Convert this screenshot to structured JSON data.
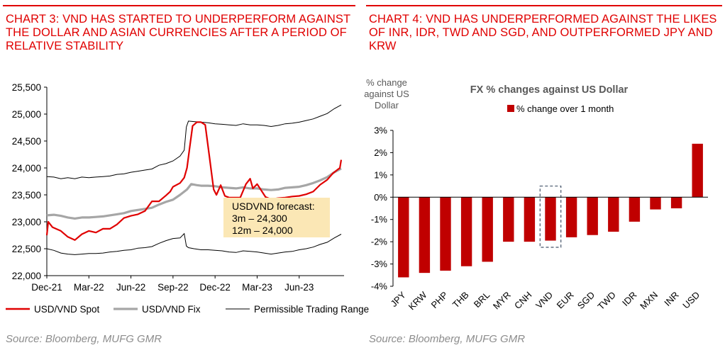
{
  "left_panel": {
    "title": "CHART 3: VND HAS STARTED TO UNDERPERFORM AGAINST THE DOLLAR AND ASIAN CURRENCIES AFTER A PERIOD OF RELATIVE STABILITY",
    "source": "Source: Bloomberg, MUFG GMR"
  },
  "right_panel": {
    "title": "CHART 4: VND HAS UNDERPERFORMED AGAINST THE LIKES OF INR, IDR, TWD AND SGD, AND OUTPERFORMED JPY AND KRW",
    "source": "Source: Bloomberg, MUFG GMR"
  },
  "colors": {
    "accent_red": "#e00000",
    "spot_line": "#e00000",
    "fix_line": "#a6a6a6",
    "range_line": "#000000",
    "bar": "#c00000",
    "annotation_bg": "#fbe7b5",
    "vnd_highlight_box": "#44546a"
  },
  "chart_data": [
    {
      "type": "line",
      "title": "",
      "xlabel": "",
      "ylabel": "",
      "ylim": [
        22000,
        25500
      ],
      "yticks": [
        "25,500",
        "25,000",
        "24,500",
        "24,000",
        "23,500",
        "23,000",
        "22,500",
        "22,000"
      ],
      "ytick_values": [
        25500,
        25000,
        24500,
        24000,
        23500,
        23000,
        22500,
        22000
      ],
      "xticks": [
        "Dec-21",
        "Mar-22",
        "Jun-22",
        "Sep-22",
        "Dec-22",
        "Mar-23",
        "Jun-23"
      ],
      "xtick_months": [
        0,
        3,
        6,
        9,
        12,
        15,
        18
      ],
      "xlim_months": [
        0,
        21.2
      ],
      "grid": false,
      "legend_position": "bottom",
      "annotation": [
        "USDVND forecast:",
        "3m – 24,300",
        "12m – 24,000"
      ],
      "series": [
        {
          "name": "USD/VND Spot",
          "color": "#e00000",
          "points": [
            [
              0,
              22750
            ],
            [
              0.1,
              23000
            ],
            [
              0.4,
              22900
            ],
            [
              1,
              22830
            ],
            [
              1.5,
              22720
            ],
            [
              2,
              22660
            ],
            [
              2.5,
              22770
            ],
            [
              3,
              22830
            ],
            [
              3.5,
              22800
            ],
            [
              4,
              22870
            ],
            [
              4.5,
              22870
            ],
            [
              5,
              22950
            ],
            [
              5.5,
              23070
            ],
            [
              6,
              23110
            ],
            [
              6.5,
              23140
            ],
            [
              7,
              23200
            ],
            [
              7.5,
              23380
            ],
            [
              8,
              23380
            ],
            [
              8.5,
              23490
            ],
            [
              8.8,
              23560
            ],
            [
              9,
              23650
            ],
            [
              9.5,
              23720
            ],
            [
              9.8,
              23820
            ],
            [
              10.0,
              24000
            ],
            [
              10.2,
              24400
            ],
            [
              10.4,
              24780
            ],
            [
              10.7,
              24850
            ],
            [
              11,
              24850
            ],
            [
              11.3,
              24800
            ],
            [
              11.6,
              24200
            ],
            [
              11.9,
              23600
            ],
            [
              12.1,
              23500
            ],
            [
              12.4,
              23680
            ],
            [
              12.7,
              23480
            ],
            [
              13,
              23450
            ],
            [
              13.4,
              23450
            ],
            [
              13.8,
              23450
            ],
            [
              14.2,
              23700
            ],
            [
              14.5,
              23800
            ],
            [
              14.7,
              23620
            ],
            [
              15,
              23700
            ],
            [
              15.3,
              23580
            ],
            [
              15.6,
              23460
            ],
            [
              16,
              23420
            ],
            [
              16.5,
              23440
            ],
            [
              17,
              23450
            ],
            [
              17.5,
              23470
            ],
            [
              18,
              23480
            ],
            [
              18.5,
              23510
            ],
            [
              19,
              23560
            ],
            [
              19.5,
              23690
            ],
            [
              20,
              23780
            ],
            [
              20.4,
              23900
            ],
            [
              20.7,
              23960
            ],
            [
              20.9,
              24000
            ],
            [
              21,
              24150
            ]
          ]
        },
        {
          "name": "USD/VND Fix",
          "color": "#a6a6a6",
          "points": [
            [
              0,
              23120
            ],
            [
              0.5,
              23130
            ],
            [
              1,
              23110
            ],
            [
              1.5,
              23080
            ],
            [
              2,
              23060
            ],
            [
              2.5,
              23080
            ],
            [
              3,
              23080
            ],
            [
              3.5,
              23090
            ],
            [
              4,
              23100
            ],
            [
              4.5,
              23120
            ],
            [
              5,
              23140
            ],
            [
              5.5,
              23160
            ],
            [
              6,
              23200
            ],
            [
              6.5,
              23220
            ],
            [
              7,
              23240
            ],
            [
              7.5,
              23260
            ],
            [
              8,
              23320
            ],
            [
              8.5,
              23370
            ],
            [
              9,
              23410
            ],
            [
              9.5,
              23500
            ],
            [
              10,
              23600
            ],
            [
              10.3,
              23700
            ],
            [
              10.7,
              23680
            ],
            [
              11,
              23670
            ],
            [
              11.5,
              23670
            ],
            [
              12,
              23660
            ],
            [
              12.5,
              23640
            ],
            [
              13,
              23630
            ],
            [
              13.5,
              23620
            ],
            [
              14,
              23640
            ],
            [
              14.5,
              23620
            ],
            [
              15,
              23620
            ],
            [
              15.5,
              23600
            ],
            [
              16,
              23590
            ],
            [
              16.5,
              23600
            ],
            [
              17,
              23630
            ],
            [
              17.5,
              23640
            ],
            [
              18,
              23650
            ],
            [
              18.5,
              23680
            ],
            [
              19,
              23720
            ],
            [
              19.5,
              23770
            ],
            [
              20,
              23830
            ],
            [
              20.5,
              23920
            ],
            [
              21,
              23990
            ]
          ]
        },
        {
          "name": "Permissible Trading Range",
          "color": "#000000",
          "upper_points": [
            [
              0,
              23840
            ],
            [
              0.5,
              23830
            ],
            [
              1,
              23800
            ],
            [
              1.5,
              23820
            ],
            [
              2,
              23800
            ],
            [
              2.5,
              23830
            ],
            [
              3,
              23820
            ],
            [
              3.5,
              23830
            ],
            [
              4,
              23840
            ],
            [
              4.5,
              23850
            ],
            [
              5,
              23880
            ],
            [
              5.5,
              23890
            ],
            [
              6,
              23920
            ],
            [
              6.5,
              23940
            ],
            [
              7,
              23960
            ],
            [
              7.5,
              23980
            ],
            [
              8,
              24050
            ],
            [
              8.5,
              24080
            ],
            [
              9,
              24130
            ],
            [
              9.5,
              24220
            ],
            [
              9.8,
              24330
            ],
            [
              9.95,
              24760
            ],
            [
              10.1,
              24870
            ],
            [
              10.5,
              24860
            ],
            [
              11,
              24850
            ],
            [
              11.5,
              24840
            ],
            [
              12,
              24820
            ],
            [
              12.5,
              24810
            ],
            [
              13,
              24800
            ],
            [
              13.5,
              24790
            ],
            [
              14,
              24820
            ],
            [
              14.5,
              24800
            ],
            [
              15,
              24800
            ],
            [
              15.5,
              24790
            ],
            [
              16,
              24770
            ],
            [
              16.5,
              24790
            ],
            [
              17,
              24820
            ],
            [
              17.5,
              24830
            ],
            [
              18,
              24850
            ],
            [
              18.5,
              24880
            ],
            [
              19,
              24910
            ],
            [
              19.5,
              24960
            ],
            [
              20,
              25010
            ],
            [
              20.5,
              25100
            ],
            [
              21,
              25170
            ]
          ],
          "lower_points": [
            [
              0,
              22500
            ],
            [
              0.5,
              22470
            ],
            [
              1,
              22420
            ],
            [
              1.5,
              22400
            ],
            [
              2,
              22390
            ],
            [
              2.5,
              22400
            ],
            [
              3,
              22410
            ],
            [
              3.5,
              22410
            ],
            [
              4,
              22420
            ],
            [
              4.5,
              22440
            ],
            [
              5,
              22450
            ],
            [
              5.5,
              22470
            ],
            [
              6,
              22480
            ],
            [
              6.5,
              22510
            ],
            [
              7,
              22520
            ],
            [
              7.5,
              22540
            ],
            [
              8,
              22600
            ],
            [
              8.5,
              22650
            ],
            [
              9,
              22690
            ],
            [
              9.5,
              22700
            ],
            [
              9.8,
              22780
            ],
            [
              9.95,
              22550
            ],
            [
              10.1,
              22520
            ],
            [
              10.5,
              22500
            ],
            [
              11,
              22480
            ],
            [
              11.5,
              22480
            ],
            [
              12,
              22470
            ],
            [
              12.5,
              22460
            ],
            [
              13,
              22440
            ],
            [
              13.5,
              22430
            ],
            [
              14,
              22460
            ],
            [
              14.5,
              22450
            ],
            [
              15,
              22440
            ],
            [
              15.5,
              22420
            ],
            [
              16,
              22400
            ],
            [
              16.5,
              22420
            ],
            [
              17,
              22440
            ],
            [
              17.5,
              22450
            ],
            [
              18,
              22480
            ],
            [
              18.5,
              22500
            ],
            [
              19,
              22530
            ],
            [
              19.5,
              22580
            ],
            [
              20,
              22620
            ],
            [
              20.5,
              22700
            ],
            [
              21,
              22770
            ]
          ]
        }
      ]
    },
    {
      "type": "bar",
      "title": "FX % changes against US Dollar",
      "ylabel": "% change against US Dollar",
      "ylabel_lines": [
        "% change",
        "against US",
        "Dollar"
      ],
      "ylim": [
        -4,
        3
      ],
      "yticks": [
        "3%",
        "2%",
        "1%",
        "0%",
        "-1%",
        "-2%",
        "-3%",
        "-4%"
      ],
      "ytick_values": [
        3,
        2,
        1,
        0,
        -1,
        -2,
        -3,
        -4
      ],
      "grid": false,
      "legend_position": "top",
      "highlighted_category": "VND",
      "categories": [
        "JPY",
        "KRW",
        "PHP",
        "THB",
        "BRL",
        "MYR",
        "CNH",
        "VND",
        "EUR",
        "SGD",
        "TWD",
        "IDR",
        "MXN",
        "INR",
        "USD"
      ],
      "series": [
        {
          "name": "% change over 1 month",
          "color": "#c00000",
          "values": [
            -3.6,
            -3.4,
            -3.3,
            -3.1,
            -2.9,
            -2.0,
            -2.0,
            -1.95,
            -1.8,
            -1.7,
            -1.55,
            -1.1,
            -0.55,
            -0.5,
            2.4
          ]
        }
      ]
    }
  ]
}
